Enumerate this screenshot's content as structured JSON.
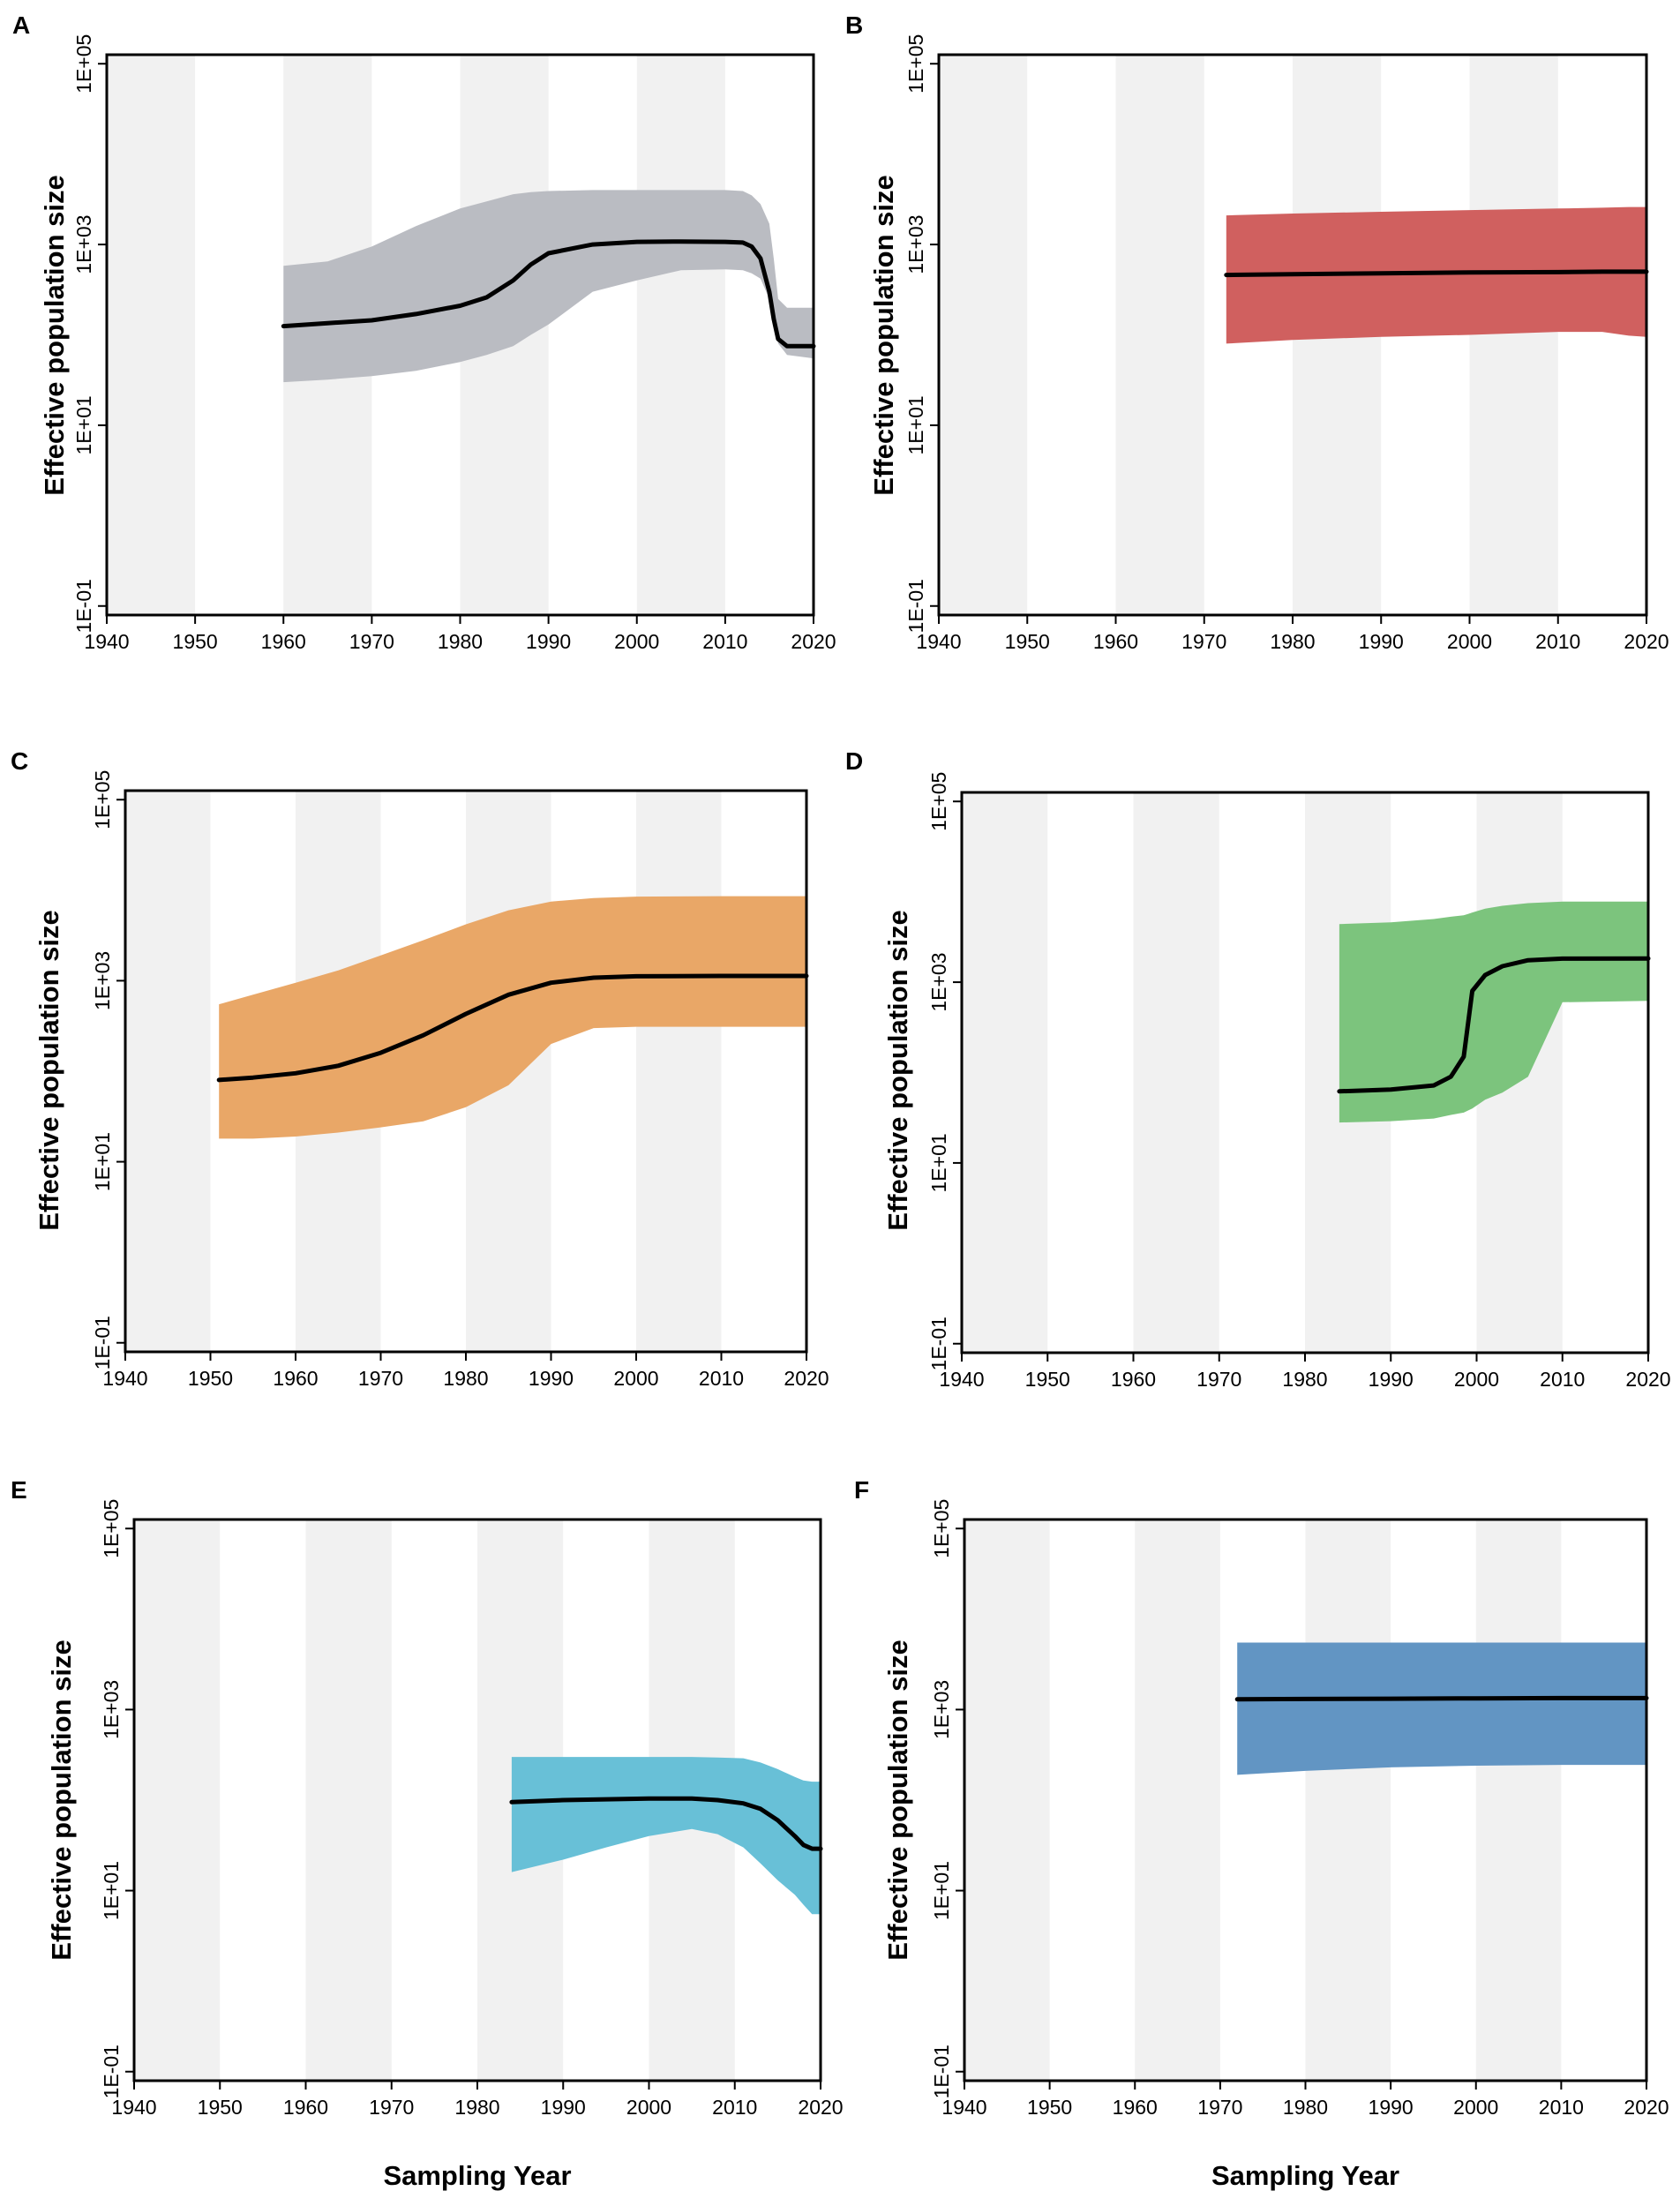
{
  "figure": {
    "shared_axes": {
      "xlabel": "Sampling Year",
      "ylabel": "Effective population size",
      "x_ticks": [
        "1940",
        "1950",
        "1960",
        "1970",
        "1980",
        "1990",
        "2000",
        "2010",
        "2020"
      ],
      "y_ticks": [
        "1E-01",
        "1E+01",
        "1E+03",
        "1E+05"
      ]
    }
  },
  "chart_data": [
    {
      "panel": "A",
      "type": "area",
      "color": "#babcc2",
      "xlim": [
        1940,
        2020
      ],
      "ylim_log10": [
        -1.1,
        5.1
      ],
      "grid_bands": true,
      "xlabel": "",
      "ylabel": "Effective population size",
      "x_ticks": [
        "1940",
        "1950",
        "1960",
        "1970",
        "1980",
        "1990",
        "2000",
        "2010",
        "2020"
      ],
      "y_ticks": [
        "1E-01",
        "1E+01",
        "1E+03",
        "1E+05"
      ],
      "series": [
        {
          "name": "median",
          "x": [
            1960,
            1965,
            1970,
            1975,
            1980,
            1983,
            1986,
            1988,
            1990,
            1995,
            2000,
            2005,
            2010,
            2012,
            2013,
            2014,
            2015,
            2015.5,
            2016,
            2017,
            2020
          ],
          "median": [
            125,
            135,
            145,
            170,
            210,
            260,
            400,
            600,
            800,
            1000,
            1070,
            1080,
            1070,
            1050,
            950,
            700,
            300,
            150,
            90,
            75,
            75
          ],
          "lower": [
            30,
            32,
            35,
            40,
            50,
            60,
            75,
            100,
            130,
            300,
            400,
            520,
            530,
            520,
            480,
            420,
            250,
            130,
            80,
            60,
            55
          ],
          "upper": [
            580,
            650,
            950,
            1600,
            2500,
            3000,
            3600,
            3800,
            3900,
            4000,
            4000,
            4000,
            4000,
            3900,
            3500,
            2800,
            1700,
            700,
            250,
            200,
            200
          ]
        }
      ]
    },
    {
      "panel": "B",
      "type": "area",
      "color": "#d0605f",
      "xlim": [
        1940,
        2020
      ],
      "ylim_log10": [
        -1.1,
        5.1
      ],
      "grid_bands": true,
      "xlabel": "",
      "ylabel": "Effective population size",
      "x_ticks": [
        "1940",
        "1950",
        "1960",
        "1970",
        "1980",
        "1990",
        "2000",
        "2010",
        "2020"
      ],
      "y_ticks": [
        "1E-01",
        "1E+01",
        "1E+03",
        "1E+05"
      ],
      "series": [
        {
          "name": "median",
          "x": [
            1972.5,
            1980,
            1990,
            2000,
            2010,
            2015,
            2018,
            2020
          ],
          "median": [
            460,
            470,
            480,
            490,
            495,
            500,
            500,
            500
          ],
          "lower": [
            80,
            88,
            95,
            100,
            108,
            108,
            98,
            95
          ],
          "upper": [
            2100,
            2200,
            2300,
            2400,
            2500,
            2550,
            2600,
            2600
          ]
        }
      ]
    },
    {
      "panel": "C",
      "type": "area",
      "color": "#e9a767",
      "xlim": [
        1940,
        2020
      ],
      "ylim_log10": [
        -1.1,
        5.1
      ],
      "grid_bands": true,
      "xlabel": "",
      "ylabel": "Effective population size",
      "x_ticks": [
        "1940",
        "1950",
        "1960",
        "1970",
        "1980",
        "1990",
        "2000",
        "2010",
        "2020"
      ],
      "y_ticks": [
        "1E-01",
        "1E+01",
        "1E+03",
        "1E+05"
      ],
      "series": [
        {
          "name": "median",
          "x": [
            1951,
            1955,
            1960,
            1965,
            1970,
            1975,
            1980,
            1985,
            1990,
            1995,
            2000,
            2010,
            2020
          ],
          "median": [
            80,
            85,
            95,
            115,
            160,
            250,
            430,
            700,
            950,
            1080,
            1120,
            1130,
            1130
          ],
          "lower": [
            18,
            18,
            19,
            21,
            24,
            28,
            40,
            70,
            200,
            300,
            310,
            310,
            310
          ],
          "upper": [
            550,
            700,
            950,
            1300,
            1900,
            2800,
            4200,
            6000,
            7500,
            8200,
            8500,
            8600,
            8600
          ]
        }
      ]
    },
    {
      "panel": "D",
      "type": "area",
      "color": "#7cc47d",
      "xlim": [
        1940,
        2020
      ],
      "ylim_log10": [
        -1.1,
        5.1
      ],
      "grid_bands": true,
      "xlabel": "",
      "ylabel": "Effective population size",
      "x_ticks": [
        "1940",
        "1950",
        "1960",
        "1970",
        "1980",
        "1990",
        "2000",
        "2010",
        "2020"
      ],
      "y_ticks": [
        "1E-01",
        "1E+01",
        "1E+03",
        "1E+05"
      ],
      "series": [
        {
          "name": "median",
          "x": [
            1984,
            1990,
            1995,
            1997,
            1998.5,
            1999,
            1999.5,
            2001,
            2003,
            2006,
            2010,
            2020
          ],
          "median": [
            62,
            65,
            72,
            90,
            150,
            350,
            800,
            1200,
            1500,
            1750,
            1820,
            1830
          ],
          "lower": [
            28,
            29,
            31,
            34,
            36,
            38,
            40,
            50,
            60,
            90,
            600,
            620
          ],
          "upper": [
            4400,
            4600,
            5000,
            5300,
            5500,
            5700,
            5900,
            6500,
            7000,
            7500,
            7800,
            7800
          ]
        }
      ]
    },
    {
      "panel": "E",
      "type": "area",
      "color": "#68c0d7",
      "xlim": [
        1940,
        2020
      ],
      "ylim_log10": [
        -1.1,
        5.1
      ],
      "grid_bands": true,
      "xlabel": "Sampling Year",
      "ylabel": "Effective population size",
      "x_ticks": [
        "1940",
        "1950",
        "1960",
        "1970",
        "1980",
        "1990",
        "2000",
        "2010",
        "2020"
      ],
      "y_ticks": [
        "1E-01",
        "1E+01",
        "1E+03",
        "1E+05"
      ],
      "series": [
        {
          "name": "median",
          "x": [
            1984,
            1990,
            1995,
            2000,
            2005,
            2008,
            2011,
            2013,
            2015,
            2017,
            2018,
            2019,
            2020
          ],
          "median": [
            95,
            100,
            102,
            104,
            104,
            100,
            92,
            80,
            60,
            40,
            32,
            29,
            29
          ],
          "lower": [
            16,
            22,
            30,
            40,
            48,
            42,
            30,
            20,
            13,
            9,
            7,
            5.5,
            5.5
          ],
          "upper": [
            300,
            300,
            300,
            300,
            300,
            295,
            290,
            260,
            220,
            180,
            165,
            160,
            160
          ]
        }
      ]
    },
    {
      "panel": "F",
      "type": "area",
      "color": "#6295c3",
      "xlim": [
        1940,
        2020
      ],
      "ylim_log10": [
        -1.1,
        5.1
      ],
      "grid_bands": true,
      "xlabel": "Sampling Year",
      "ylabel": "Effective population size",
      "x_ticks": [
        "1940",
        "1950",
        "1960",
        "1970",
        "1980",
        "1990",
        "2000",
        "2010",
        "2020"
      ],
      "y_ticks": [
        "1E-01",
        "1E+01",
        "1E+03",
        "1E+05"
      ],
      "series": [
        {
          "name": "median",
          "x": [
            1972,
            1980,
            1990,
            2000,
            2010,
            2020
          ],
          "median": [
            1300,
            1310,
            1320,
            1330,
            1340,
            1340
          ],
          "lower": [
            190,
            210,
            230,
            240,
            245,
            245
          ],
          "upper": [
            5500,
            5500,
            5500,
            5500,
            5500,
            5500
          ]
        }
      ]
    }
  ]
}
